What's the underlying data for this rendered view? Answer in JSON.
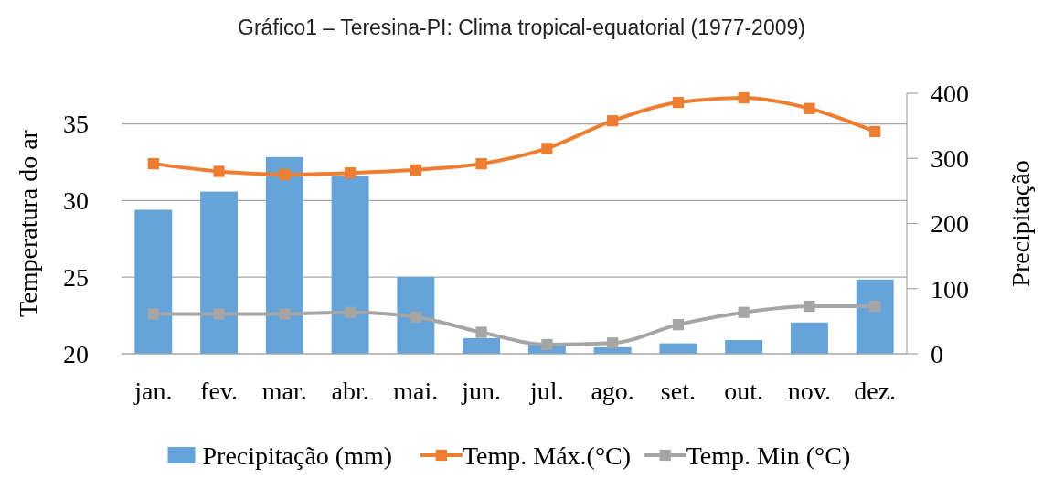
{
  "chart_data": {
    "type": "bar",
    "title": "Gráfico1 – Teresina-PI: Clima tropical-equatorial (1977-2009)",
    "ylabel": "Temperatura do ar",
    "y2label": "Precipitação",
    "categories": [
      "jan.",
      "fev.",
      "mar.",
      "abr.",
      "mai.",
      "jun.",
      "jul.",
      "ago.",
      "set.",
      "out.",
      "nov.",
      "dez."
    ],
    "series": [
      {
        "name": "Precipitação (mm)",
        "axis": "y2",
        "color": "#65a3d9",
        "values": [
          221,
          249,
          302,
          273,
          118,
          24,
          15,
          10,
          16,
          21,
          48,
          114
        ]
      },
      {
        "name": "Temp. Máx.(°C)",
        "type": "line",
        "color": "#ed7d31",
        "values": [
          32.4,
          31.9,
          31.7,
          31.8,
          32.0,
          32.4,
          33.4,
          35.2,
          36.4,
          36.7,
          36.0,
          34.5
        ]
      },
      {
        "name": "Temp. Min (°C)",
        "type": "line",
        "color": "#a5a5a5",
        "values": [
          22.6,
          22.6,
          22.6,
          22.7,
          22.4,
          21.4,
          20.6,
          20.7,
          21.9,
          22.7,
          23.1,
          23.1
        ]
      }
    ],
    "ylim": [
      20,
      37
    ],
    "yticks": [
      20,
      25,
      30,
      35
    ],
    "y2lim": [
      0,
      400
    ],
    "y2ticks": [
      0,
      100,
      200,
      300,
      400
    ],
    "grid": "y",
    "legend": "bottom",
    "marker": "square",
    "line_style": "solid"
  }
}
